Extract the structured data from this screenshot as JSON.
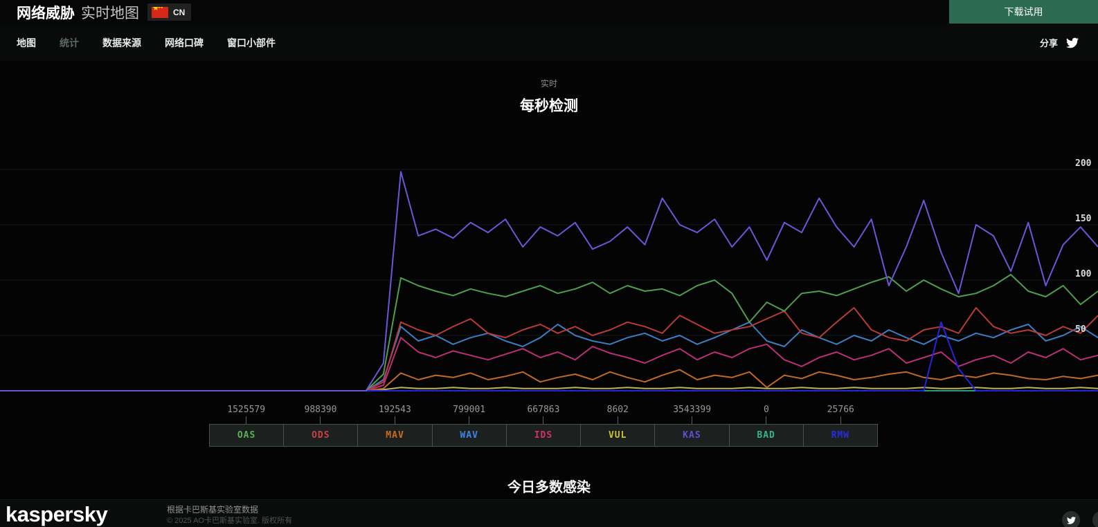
{
  "header": {
    "brand_bold": "网络威胁",
    "brand_light": "实时地图",
    "country_code": "CN",
    "download_button": "下载试用"
  },
  "nav": {
    "items": [
      {
        "name": "nav-tab-map",
        "label": "地图",
        "active": false
      },
      {
        "name": "nav-tab-statistics",
        "label": "统计",
        "active": true
      },
      {
        "name": "nav-tab-data-sources",
        "label": "数据来源",
        "active": false
      },
      {
        "name": "nav-tab-buzz",
        "label": "网络口碑",
        "active": false
      },
      {
        "name": "nav-tab-widget",
        "label": "窗口小部件",
        "active": false
      }
    ],
    "share_label": "分享"
  },
  "stats": {
    "subtitle": "实时",
    "title": "每秒检测"
  },
  "chart_data": {
    "type": "line",
    "title": "每秒检测",
    "subtitle": "实时",
    "xlabel": "",
    "ylabel": "",
    "ylim": [
      0,
      210
    ],
    "grid": true,
    "gridlines": [
      50,
      100,
      150,
      200
    ],
    "legend_position": "bottom",
    "x_points": 64,
    "x_axis_note": "rolling time window, unlabeled; left third flat at 0 before data starts",
    "draw_order": [
      "BAD",
      "VUL",
      "MAV",
      "IDS",
      "WAV",
      "ODS",
      "RMW",
      "OAS",
      "KAS"
    ],
    "series": [
      {
        "code": "OAS",
        "count": "1525579",
        "color": "#4f9e4f",
        "label_color": "#58b058",
        "values": [
          0,
          0,
          0,
          0,
          0,
          0,
          0,
          0,
          0,
          0,
          0,
          0,
          0,
          0,
          0,
          0,
          0,
          0,
          0,
          0,
          0,
          0,
          15,
          102,
          95,
          90,
          86,
          92,
          88,
          85,
          90,
          95,
          88,
          92,
          98,
          88,
          95,
          90,
          92,
          86,
          95,
          100,
          88,
          62,
          80,
          72,
          88,
          90,
          86,
          92,
          98,
          103,
          90,
          100,
          92,
          85,
          88,
          95,
          105,
          90,
          85,
          95,
          78,
          90
        ]
      },
      {
        "code": "ODS",
        "count": "988390",
        "color": "#b93a3a",
        "label_color": "#cc4048",
        "values": [
          0,
          0,
          0,
          0,
          0,
          0,
          0,
          0,
          0,
          0,
          0,
          0,
          0,
          0,
          0,
          0,
          0,
          0,
          0,
          0,
          0,
          0,
          8,
          62,
          55,
          50,
          58,
          65,
          52,
          48,
          55,
          60,
          52,
          58,
          50,
          55,
          62,
          58,
          52,
          68,
          60,
          52,
          55,
          58,
          65,
          72,
          52,
          48,
          62,
          75,
          55,
          48,
          45,
          55,
          58,
          52,
          75,
          58,
          52,
          55,
          50,
          58,
          52,
          68
        ]
      },
      {
        "code": "MAV",
        "count": "192543",
        "color": "#c06a2a",
        "label_color": "#cc6a22",
        "values": [
          0,
          0,
          0,
          0,
          0,
          0,
          0,
          0,
          0,
          0,
          0,
          0,
          0,
          0,
          0,
          0,
          0,
          0,
          0,
          0,
          0,
          0,
          2,
          16,
          10,
          14,
          12,
          16,
          10,
          13,
          17,
          8,
          12,
          15,
          10,
          17,
          12,
          8,
          14,
          19,
          10,
          14,
          12,
          17,
          3,
          14,
          11,
          17,
          14,
          10,
          12,
          15,
          17,
          12,
          10,
          14,
          12,
          16,
          14,
          11,
          10,
          13,
          11,
          14
        ]
      },
      {
        "code": "WAV",
        "count": "799001",
        "color": "#3d7ec2",
        "label_color": "#3f86e0",
        "values": [
          0,
          0,
          0,
          0,
          0,
          0,
          0,
          0,
          0,
          0,
          0,
          0,
          0,
          0,
          0,
          0,
          0,
          0,
          0,
          0,
          0,
          0,
          10,
          58,
          45,
          50,
          42,
          48,
          52,
          45,
          40,
          48,
          60,
          50,
          45,
          42,
          48,
          52,
          45,
          50,
          42,
          48,
          55,
          62,
          45,
          40,
          55,
          48,
          42,
          50,
          45,
          55,
          48,
          42,
          50,
          45,
          52,
          48,
          55,
          60,
          45,
          50,
          58,
          48
        ]
      },
      {
        "code": "IDS",
        "count": "667863",
        "color": "#bb2f77",
        "label_color": "#d62f6d",
        "values": [
          0,
          0,
          0,
          0,
          0,
          0,
          0,
          0,
          0,
          0,
          0,
          0,
          0,
          0,
          0,
          0,
          0,
          0,
          0,
          0,
          0,
          0,
          5,
          48,
          35,
          30,
          36,
          32,
          28,
          33,
          38,
          30,
          35,
          28,
          40,
          34,
          30,
          25,
          32,
          38,
          28,
          35,
          30,
          38,
          42,
          28,
          22,
          30,
          35,
          28,
          32,
          38,
          25,
          30,
          35,
          22,
          28,
          32,
          25,
          35,
          30,
          38,
          28,
          32
        ]
      },
      {
        "code": "VUL",
        "count": "8602",
        "color": "#b9b55e",
        "label_color": "#cfc22e",
        "values": [
          0,
          0,
          0,
          0,
          0,
          0,
          0,
          0,
          0,
          0,
          0,
          0,
          0,
          0,
          0,
          0,
          0,
          0,
          0,
          0,
          0,
          0,
          1,
          3,
          2,
          2,
          3,
          2,
          2,
          3,
          2,
          2,
          2,
          3,
          2,
          2,
          3,
          2,
          2,
          3,
          2,
          2,
          2,
          3,
          2,
          2,
          3,
          2,
          2,
          3,
          2,
          2,
          2,
          3,
          2,
          2,
          3,
          2,
          2,
          3,
          2,
          2,
          3,
          2
        ]
      },
      {
        "code": "KAS",
        "count": "3543399",
        "color": "#6a58d8",
        "label_color": "#5f4fd6",
        "values": [
          0,
          0,
          0,
          0,
          0,
          0,
          0,
          0,
          0,
          0,
          0,
          0,
          0,
          0,
          0,
          0,
          0,
          0,
          0,
          0,
          0,
          0,
          25,
          198,
          140,
          146,
          138,
          152,
          143,
          155,
          130,
          148,
          140,
          152,
          128,
          135,
          148,
          132,
          174,
          150,
          143,
          155,
          130,
          148,
          118,
          152,
          143,
          174,
          148,
          130,
          155,
          95,
          130,
          172,
          125,
          88,
          150,
          140,
          108,
          152,
          95,
          132,
          148,
          130
        ]
      },
      {
        "code": "BAD",
        "count": "0",
        "color": "#2f9e78",
        "label_color": "#35b585",
        "values": [
          0,
          0,
          0,
          0,
          0,
          0,
          0,
          0,
          0,
          0,
          0,
          0,
          0,
          0,
          0,
          0,
          0,
          0,
          0,
          0,
          0,
          0,
          0,
          0,
          0,
          0,
          0,
          0,
          0,
          0,
          0,
          0,
          0,
          0,
          0,
          0,
          0,
          0,
          0,
          0,
          0,
          0,
          0,
          0,
          0,
          0,
          0,
          0,
          0,
          0,
          0,
          0,
          0,
          0,
          0,
          0,
          0,
          0,
          0,
          0,
          0,
          0,
          0,
          0
        ]
      },
      {
        "code": "RMW",
        "count": "25766",
        "color": "#2525dd",
        "label_color": "#2a2ae0",
        "values": [
          0,
          0,
          0,
          0,
          0,
          0,
          0,
          0,
          0,
          0,
          0,
          0,
          0,
          0,
          0,
          0,
          0,
          0,
          0,
          0,
          0,
          0,
          0,
          0,
          0,
          0,
          0,
          0,
          0,
          0,
          0,
          0,
          0,
          0,
          0,
          0,
          0,
          0,
          0,
          0,
          0,
          0,
          0,
          0,
          0,
          0,
          0,
          0,
          0,
          0,
          0,
          0,
          0,
          0,
          62,
          20,
          0,
          0,
          0,
          0,
          0,
          0,
          0,
          0
        ]
      }
    ]
  },
  "next_section": {
    "title": "今日多数感染"
  },
  "footer": {
    "logo": "kaspersky",
    "credit_line1": "根据卡巴斯基实验室数据",
    "credit_line2": "© 2025 AO卡巴斯基实验室. 版权所有",
    "linkedin_glyph": "in"
  }
}
